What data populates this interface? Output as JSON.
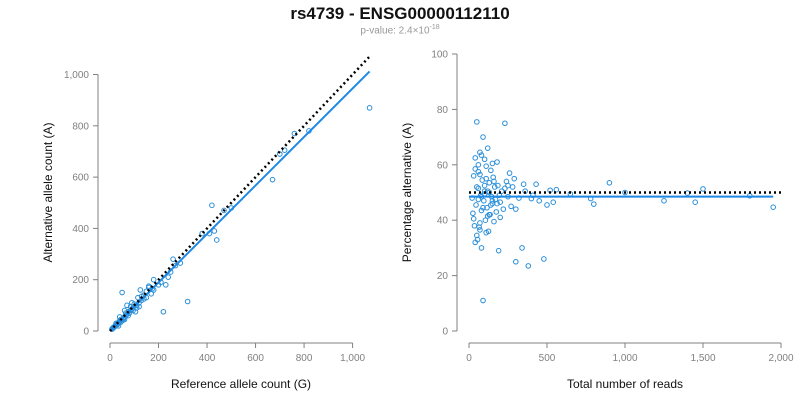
{
  "title": "rs4739 - ENSG00000112110",
  "subtitle": {
    "prefix": "p-value: 2.4×10",
    "exponent": "-18"
  },
  "colors": {
    "points": "#2b8fd9",
    "fit_line": "#1e88e5",
    "reference_line": "#000000",
    "axis": "#808080",
    "text": "#111111",
    "tick_text": "#808080"
  },
  "chart_data": [
    {
      "type": "scatter",
      "xlabel": "Reference allele count (G)",
      "ylabel": "Alternative allele count (A)",
      "xlim": [
        0,
        1080
      ],
      "ylim": [
        0,
        1080
      ],
      "xticks": [
        0,
        200,
        400,
        600,
        800,
        1000
      ],
      "xtick_labels": [
        "0",
        "200",
        "400",
        "600",
        "800",
        "1,000"
      ],
      "yticks": [
        0,
        200,
        400,
        600,
        800,
        1000
      ],
      "ytick_labels": [
        "0",
        "200",
        "400",
        "600",
        "800",
        "1,000"
      ],
      "grid": false,
      "reference_line": {
        "style": "dotted",
        "from": [
          0,
          0
        ],
        "to": [
          1070,
          1070
        ]
      },
      "fit_line": {
        "style": "solid",
        "from": [
          0,
          0
        ],
        "to": [
          1070,
          1012
        ]
      },
      "points": {
        "x": [
          1070,
          820,
          720,
          760,
          700,
          670,
          500,
          470,
          430,
          420,
          410,
          440,
          380,
          320,
          290,
          260,
          270,
          250,
          230,
          220,
          240,
          180,
          175,
          160,
          150,
          140,
          130,
          125,
          120,
          115,
          110,
          105,
          100,
          95,
          90,
          85,
          80,
          75,
          70,
          65,
          60,
          55,
          50,
          50,
          45,
          40,
          38,
          35,
          32,
          30,
          28,
          26,
          24,
          22,
          20,
          18,
          16,
          15,
          14,
          12,
          10,
          9,
          8,
          60,
          70,
          90,
          120,
          140,
          170,
          200,
          60,
          40,
          30,
          25,
          35,
          45,
          55,
          65,
          75,
          85,
          95,
          110,
          130,
          150,
          160,
          180,
          210
        ],
        "y": [
          870,
          780,
          705,
          770,
          690,
          590,
          480,
          470,
          390,
          490,
          380,
          355,
          380,
          115,
          265,
          280,
          255,
          230,
          180,
          75,
          210,
          200,
          165,
          175,
          155,
          140,
          135,
          160,
          110,
          130,
          100,
          75,
          105,
          90,
          85,
          80,
          70,
          75,
          65,
          60,
          55,
          50,
          150,
          40,
          45,
          40,
          35,
          33,
          30,
          28,
          26,
          24,
          22,
          20,
          18,
          16,
          15,
          14,
          13,
          11,
          10,
          8,
          7,
          80,
          100,
          110,
          95,
          125,
          145,
          180,
          45,
          55,
          25,
          30,
          20,
          35,
          45,
          70,
          60,
          95,
          80,
          90,
          120,
          130,
          170,
          160,
          190
        ]
      }
    },
    {
      "type": "scatter",
      "xlabel": "Total number of reads",
      "ylabel": "Percentage alternative (A)",
      "xlim": [
        0,
        2000
      ],
      "ylim": [
        0,
        100
      ],
      "xticks": [
        0,
        500,
        1000,
        1500,
        2000
      ],
      "xtick_labels": [
        "0",
        "500",
        "1,000",
        "1,500",
        "2,000"
      ],
      "yticks": [
        0,
        20,
        40,
        60,
        80,
        100
      ],
      "ytick_labels": [
        "0",
        "20",
        "40",
        "60",
        "80",
        "100"
      ],
      "grid": false,
      "reference_line": {
        "style": "dotted",
        "from": [
          0,
          50
        ],
        "to": [
          2000,
          50
        ]
      },
      "fit_line": {
        "style": "solid",
        "from": [
          0,
          48.5
        ],
        "to": [
          1950,
          48.5
        ]
      },
      "points": {
        "x": [
          1950,
          1800,
          1500,
          1450,
          1400,
          1250,
          1000,
          900,
          800,
          780,
          650,
          560,
          540,
          520,
          500,
          480,
          450,
          430,
          410,
          400,
          380,
          360,
          340,
          320,
          300,
          290,
          280,
          270,
          260,
          250,
          240,
          230,
          220,
          210,
          200,
          195,
          190,
          185,
          180,
          175,
          170,
          165,
          160,
          155,
          150,
          145,
          140,
          135,
          130,
          125,
          120,
          115,
          110,
          105,
          100,
          95,
          90,
          85,
          80,
          75,
          70,
          65,
          60,
          55,
          50,
          45,
          40,
          35,
          30,
          25,
          20,
          150,
          140,
          130,
          120,
          110,
          100,
          90,
          80,
          70,
          60,
          50,
          40,
          30,
          100,
          180,
          230,
          300,
          350,
          60,
          70,
          80,
          120,
          160,
          200,
          40,
          50,
          60,
          70,
          80,
          90,
          100,
          110,
          130,
          150,
          250
        ],
        "y": [
          44.7,
          48.8,
          51.3,
          46.5,
          49.8,
          47.0,
          50.0,
          53.5,
          45.8,
          47.8,
          49.5,
          51.0,
          46.5,
          50.8,
          45.5,
          26.0,
          47.0,
          53.0,
          49.0,
          47.8,
          23.5,
          50.5,
          30.0,
          48.0,
          25.0,
          55.0,
          52.0,
          45.0,
          57.0,
          48.5,
          54.0,
          75.0,
          44.0,
          50.5,
          41.0,
          49.0,
          29.0,
          52.5,
          61.0,
          43.0,
          47.5,
          52.0,
          39.5,
          55.5,
          46.0,
          48.5,
          58.0,
          42.0,
          53.5,
          36.0,
          50.5,
          44.5,
          59.5,
          40.0,
          62.0,
          47.0,
          11.0,
          54.5,
          30.0,
          49.0,
          64.5,
          37.5,
          51.5,
          33.0,
          75.5,
          45.5,
          62.5,
          38.0,
          56.0,
          42.5,
          48.0,
          60.5,
          45.5,
          50.0,
          66.0,
          35.5,
          52.5,
          70.0,
          43.5,
          56.5,
          47.5,
          34.5,
          58.5,
          40.5,
          49.5,
          46.0,
          51.5,
          44.0,
          53.0,
          60.0,
          36.5,
          63.5,
          41.5,
          54.0,
          46.5,
          32.0,
          52.0,
          57.5,
          39.0,
          48.5,
          44.5,
          50.5,
          55.0,
          42.0,
          47.0,
          52.5
        ]
      }
    }
  ]
}
